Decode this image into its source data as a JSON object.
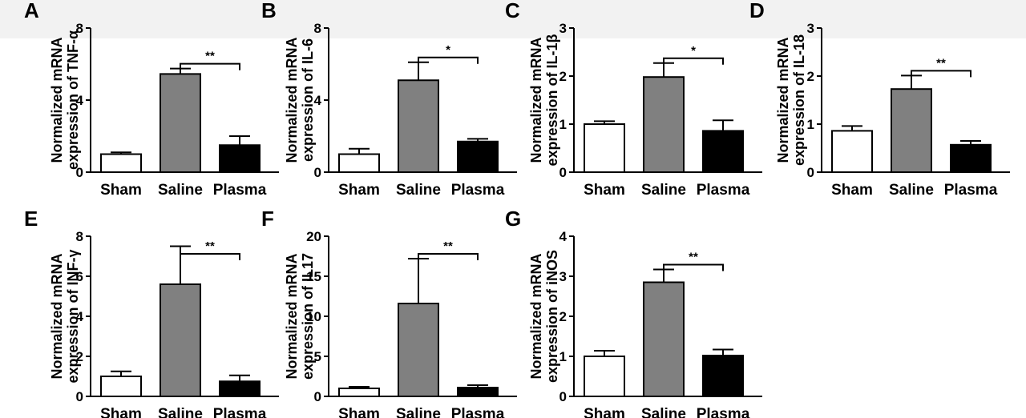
{
  "chart_data": [
    {
      "panel": "A",
      "type": "bar",
      "ylabel": [
        "Normalized mRNA",
        "expression of TNF-α"
      ],
      "categories": [
        "Sham",
        "Saline",
        "Plasma"
      ],
      "values": [
        1.0,
        5.45,
        1.5
      ],
      "errors": [
        0.1,
        0.3,
        0.5
      ],
      "ylim": [
        0,
        8
      ],
      "yticks": [
        0,
        4,
        8
      ],
      "yticklabels": [
        "0",
        "4",
        "8"
      ],
      "significance": {
        "from": 1,
        "to": 2,
        "label": "**"
      },
      "colors": [
        "#ffffff",
        "#808080",
        "#000000"
      ]
    },
    {
      "panel": "B",
      "type": "bar",
      "ylabel": [
        "Normalized mRNA",
        "expression of IL-6"
      ],
      "categories": [
        "Sham",
        "Saline",
        "Plasma"
      ],
      "values": [
        1.0,
        5.1,
        1.7
      ],
      "errors": [
        0.3,
        1.0,
        0.15
      ],
      "ylim": [
        0,
        8
      ],
      "yticks": [
        0,
        4,
        8
      ],
      "yticklabels": [
        "0",
        "4",
        "8"
      ],
      "significance": {
        "from": 1,
        "to": 2,
        "label": "*"
      },
      "colors": [
        "#ffffff",
        "#808080",
        "#000000"
      ]
    },
    {
      "panel": "C",
      "type": "bar",
      "ylabel": [
        "Normalized mRNA",
        "expression of IL-1β"
      ],
      "categories": [
        "Sham",
        "Saline",
        "Plasma"
      ],
      "values": [
        1.0,
        1.98,
        0.86
      ],
      "errors": [
        0.06,
        0.29,
        0.22
      ],
      "ylim": [
        0,
        3
      ],
      "yticks": [
        0,
        1,
        2,
        3
      ],
      "yticklabels": [
        "0",
        "1",
        "2",
        "3"
      ],
      "significance": {
        "from": 1,
        "to": 2,
        "label": "*"
      },
      "colors": [
        "#ffffff",
        "#808080",
        "#000000"
      ]
    },
    {
      "panel": "D",
      "type": "bar",
      "ylabel": [
        "Normalized mRNA",
        "expression of IL-18"
      ],
      "categories": [
        "Sham",
        "Saline",
        "Plasma"
      ],
      "values": [
        0.86,
        1.73,
        0.57
      ],
      "errors": [
        0.1,
        0.28,
        0.08
      ],
      "ylim": [
        0,
        3
      ],
      "yticks": [
        0,
        1,
        2,
        3
      ],
      "yticklabels": [
        "0",
        "1",
        "2",
        "3"
      ],
      "significance": {
        "from": 1,
        "to": 2,
        "label": "**"
      },
      "colors": [
        "#ffffff",
        "#808080",
        "#000000"
      ]
    },
    {
      "panel": "E",
      "type": "bar",
      "ylabel": [
        "Normalized mRNA",
        "expression of INF-γ"
      ],
      "categories": [
        "Sham",
        "Saline",
        "Plasma"
      ],
      "values": [
        1.0,
        5.6,
        0.75
      ],
      "errors": [
        0.25,
        1.9,
        0.3
      ],
      "ylim": [
        0,
        8
      ],
      "yticks": [
        0,
        2,
        4,
        6,
        8
      ],
      "yticklabels": [
        "0",
        "2",
        "4",
        "6",
        "8"
      ],
      "significance": {
        "from": 1,
        "to": 2,
        "label": "**"
      },
      "colors": [
        "#ffffff",
        "#808080",
        "#000000"
      ]
    },
    {
      "panel": "F",
      "type": "bar",
      "ylabel": [
        "Normalized mRNA",
        "expression of IL17"
      ],
      "categories": [
        "Sham",
        "Saline",
        "Plasma"
      ],
      "values": [
        1.0,
        11.6,
        1.1
      ],
      "errors": [
        0.2,
        5.6,
        0.3
      ],
      "ylim": [
        0,
        20
      ],
      "yticks": [
        0,
        5,
        10,
        15,
        20
      ],
      "yticklabels": [
        "0",
        "5",
        "10",
        "15",
        "20"
      ],
      "significance": {
        "from": 1,
        "to": 2,
        "label": "**"
      },
      "colors": [
        "#ffffff",
        "#808080",
        "#000000"
      ]
    },
    {
      "panel": "G",
      "type": "bar",
      "ylabel": [
        "Normalized mRNA",
        "expression of iNOS"
      ],
      "categories": [
        "Sham",
        "Saline",
        "Plasma"
      ],
      "values": [
        1.0,
        2.85,
        1.02
      ],
      "errors": [
        0.14,
        0.32,
        0.15
      ],
      "ylim": [
        0,
        4
      ],
      "yticks": [
        0,
        1,
        2,
        3,
        4
      ],
      "yticklabels": [
        "0",
        "1",
        "2",
        "3",
        "4"
      ],
      "significance": {
        "from": 1,
        "to": 2,
        "label": "**"
      },
      "colors": [
        "#ffffff",
        "#808080",
        "#000000"
      ]
    }
  ]
}
